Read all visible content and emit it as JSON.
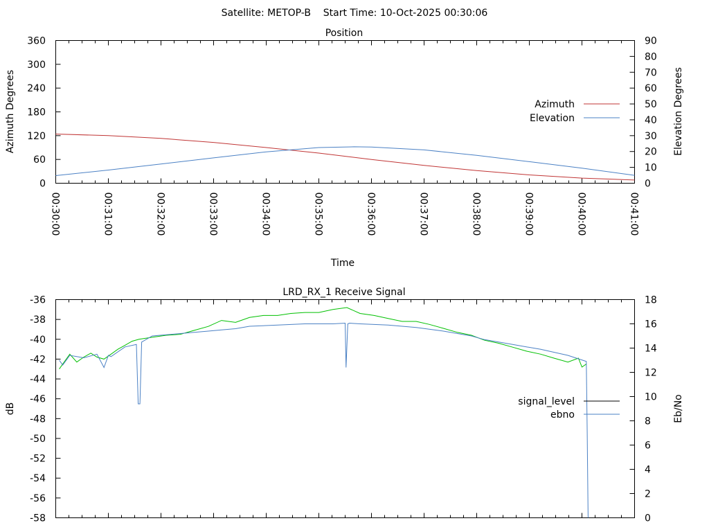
{
  "header": {
    "title": "Satellite: METOP-B    Start Time: 10-Oct-2025 00:30:06"
  },
  "colors": {
    "azimuth": "#c03434",
    "elevation": "#4a80c4",
    "signal_level": "#00c000",
    "signal_level_legend": "#000000",
    "ebno": "#4a80c4"
  },
  "chart_data": [
    {
      "type": "line",
      "title": "Position",
      "xlabel": "Time",
      "ylabel": "Azimuth Degrees",
      "y2label": "Elevation Degrees",
      "xlim_seconds": [
        0,
        660
      ],
      "ylim": [
        0,
        360
      ],
      "y2lim": [
        0,
        90
      ],
      "x_tick_labels": [
        "00:30:00",
        "00:31:00",
        "00:32:00",
        "00:33:00",
        "00:34:00",
        "00:35:00",
        "00:36:00",
        "00:37:00",
        "00:38:00",
        "00:39:00",
        "00:40:00",
        "00:41:00"
      ],
      "y_tick_labels": [
        "0",
        "60",
        "120",
        "180",
        "240",
        "300",
        "360"
      ],
      "y2_tick_labels": [
        "0",
        "10",
        "20",
        "30",
        "40",
        "50",
        "60",
        "70",
        "80",
        "90"
      ],
      "legend_position": "right",
      "series": [
        {
          "name": "Azimuth",
          "axis": "y",
          "x_seconds": [
            0,
            60,
            120,
            180,
            240,
            300,
            360,
            420,
            480,
            540,
            600,
            660
          ],
          "values": [
            124,
            120,
            113,
            103,
            90,
            76,
            60,
            45,
            32,
            21,
            13,
            8
          ]
        },
        {
          "name": "Elevation",
          "axis": "y2",
          "x_seconds": [
            0,
            60,
            120,
            180,
            240,
            300,
            340,
            360,
            420,
            480,
            540,
            600,
            660
          ],
          "values": [
            4.8,
            8.3,
            12.1,
            16,
            19.8,
            22.5,
            23,
            22.8,
            21,
            17.6,
            13.6,
            9.5,
            5
          ]
        }
      ]
    },
    {
      "type": "line",
      "title": "LRD_RX_1 Receive Signal",
      "ylabel": "dB",
      "y2label": "Eb/No",
      "xlim_seconds": [
        0,
        660
      ],
      "ylim": [
        -58,
        -36
      ],
      "y2lim": [
        0,
        18
      ],
      "y_tick_labels": [
        "-58",
        "-56",
        "-54",
        "-52",
        "-50",
        "-48",
        "-46",
        "-44",
        "-42",
        "-40",
        "-38",
        "-36"
      ],
      "y2_tick_labels": [
        "0",
        "2",
        "4",
        "6",
        "8",
        "10",
        "12",
        "14",
        "16",
        "18"
      ],
      "legend_position": "right",
      "series": [
        {
          "name": "signal_level",
          "axis": "y",
          "x_seconds": [
            4,
            8,
            16,
            24,
            32,
            40,
            47,
            55,
            63,
            71,
            79,
            87,
            95,
            110,
            126,
            142,
            158,
            174,
            189,
            205,
            221,
            237,
            253,
            268,
            284,
            300,
            316,
            332,
            347,
            363,
            379,
            395,
            411,
            426,
            442,
            458,
            474,
            489,
            505,
            521,
            537,
            553,
            568,
            584,
            596,
            600,
            605
          ],
          "values": [
            -43,
            -42.5,
            -41.5,
            -42.3,
            -41.8,
            -41.4,
            -41.8,
            -42,
            -41.5,
            -41,
            -40.6,
            -40.2,
            -40,
            -39.8,
            -39.6,
            -39.5,
            -39.1,
            -38.7,
            -38.1,
            -38.3,
            -37.8,
            -37.6,
            -37.6,
            -37.4,
            -37.3,
            -37.3,
            -37,
            -36.8,
            -37.4,
            -37.6,
            -37.9,
            -38.2,
            -38.2,
            -38.5,
            -38.9,
            -39.3,
            -39.6,
            -40.1,
            -40.4,
            -40.8,
            -41.2,
            -41.5,
            -41.9,
            -42.3,
            -41.9,
            -42.8,
            -42.5
          ]
        },
        {
          "name": "ebno",
          "axis": "y2",
          "x_seconds": [
            4,
            8,
            16,
            32,
            47,
            55,
            60,
            63,
            79,
            92,
            94,
            96,
            98,
            110,
            126,
            142,
            158,
            174,
            189,
            205,
            221,
            253,
            284,
            316,
            330,
            331,
            333,
            335,
            347,
            379,
            411,
            442,
            474,
            489,
            521,
            553,
            584,
            605,
            606,
            607
          ],
          "values": [
            13,
            12.6,
            13.4,
            13.2,
            13.5,
            12.4,
            13.4,
            13.3,
            14.1,
            14.3,
            9.4,
            9.4,
            14.5,
            15,
            15.1,
            15.2,
            15.3,
            15.4,
            15.5,
            15.6,
            15.8,
            15.9,
            16,
            16,
            16.06,
            12.4,
            16,
            16.06,
            16,
            15.9,
            15.7,
            15.4,
            15,
            14.7,
            14.3,
            13.9,
            13.4,
            12.9,
            7,
            0
          ]
        }
      ]
    }
  ]
}
